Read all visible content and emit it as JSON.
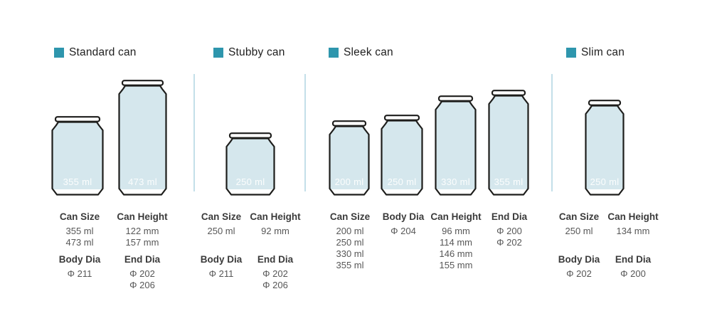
{
  "colors": {
    "accent": "#2e96ad",
    "can_fill": "#d5e7ed",
    "can_outline": "#1d1d1b",
    "divider": "#c3dfe9"
  },
  "sections": [
    {
      "label": "Standard can",
      "cans": [
        {
          "volume": "355 ml"
        },
        {
          "volume": "473 ml"
        }
      ],
      "specs": [
        {
          "header": "Can Size",
          "values": [
            "355 ml",
            "473 ml"
          ]
        },
        {
          "header": "Can Height",
          "values": [
            "122 mm",
            "157 mm"
          ]
        },
        {
          "header": "Body Dia",
          "values": [
            "Φ 211"
          ]
        },
        {
          "header": "End Dia",
          "values": [
            "Φ 202",
            "Φ 206"
          ]
        }
      ]
    },
    {
      "label": "Stubby can",
      "cans": [
        {
          "volume": "250 ml"
        }
      ],
      "specs": [
        {
          "header": "Can Size",
          "values": [
            "250 ml"
          ]
        },
        {
          "header": "Can Height",
          "values": [
            "92 mm"
          ]
        },
        {
          "header": "Body Dia",
          "values": [
            "Φ 211"
          ]
        },
        {
          "header": "End Dia",
          "values": [
            "Φ 202",
            "Φ 206"
          ]
        }
      ]
    },
    {
      "label": "Sleek can",
      "cans": [
        {
          "volume": "200 ml"
        },
        {
          "volume": "250 ml"
        },
        {
          "volume": "330 ml"
        },
        {
          "volume": "355 ml"
        }
      ],
      "specs": [
        {
          "header": "Can Size",
          "values": [
            "200 ml",
            "250 ml",
            "330 ml",
            "355 ml"
          ]
        },
        {
          "header": "Body Dia",
          "values": [
            "Φ 204"
          ]
        },
        {
          "header": "Can Height",
          "values": [
            "96 mm",
            "114 mm",
            "146 mm",
            "155 mm"
          ]
        },
        {
          "header": "End Dia",
          "values": [
            "Φ 200",
            "Φ 202"
          ]
        }
      ]
    },
    {
      "label": "Slim can",
      "cans": [
        {
          "volume": "250 ml"
        }
      ],
      "specs": [
        {
          "header": "Can Size",
          "values": [
            "250 ml"
          ]
        },
        {
          "header": "Can Height",
          "values": [
            "134 mm"
          ]
        },
        {
          "header": "Body Dia",
          "values": [
            "Φ 202"
          ]
        },
        {
          "header": "End Dia",
          "values": [
            "Φ 200"
          ]
        }
      ]
    }
  ]
}
